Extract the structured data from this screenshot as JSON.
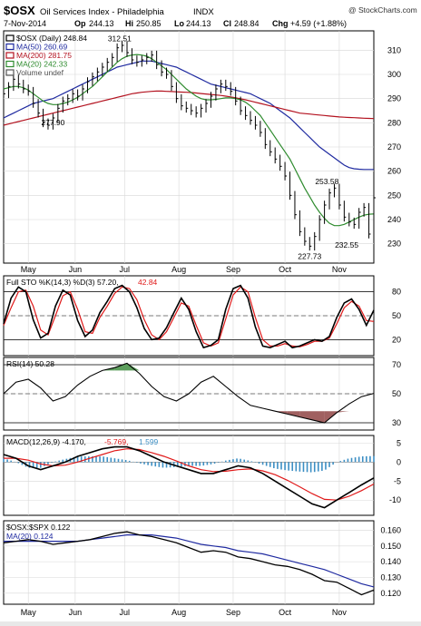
{
  "header": {
    "symbol": "$OSX",
    "name": "Oil Services Index - Philadelphia",
    "exchange": "INDX",
    "copyright": "@ StockCharts.com",
    "date": "7-Nov-2014",
    "op_label": "Op",
    "op": "244.13",
    "hi_label": "Hi",
    "hi": "250.85",
    "lo_label": "Lo",
    "lo": "244.13",
    "cl_label": "Cl",
    "cl": "248.84",
    "chg_label": "Chg",
    "chg": "+4.59 (+1.88%)"
  },
  "x_axis": {
    "months": [
      "May",
      "Jun",
      "Jul",
      "Aug",
      "Sep",
      "Oct",
      "Nov"
    ]
  },
  "colors": {
    "price": "#000000",
    "ma50": "#1f2aa0",
    "ma200": "#b3121f",
    "ma20": "#2e8b2e",
    "pct_k": "#000000",
    "pct_d": "#e01a1a",
    "rsi": "#000000",
    "macd": "#000000",
    "signal": "#e01a1a",
    "hist": "#3d8fc4",
    "ratio": "#000000",
    "ratio_ma": "#1f2aa0",
    "rsi_fill_high": "#5c9e5c",
    "rsi_fill_low": "#a06060"
  },
  "chart_data": [
    {
      "type": "line",
      "panel": "price",
      "legend": [
        {
          "label": "$OSX (Daily) 248.84",
          "color": "#000000"
        },
        {
          "label": "MA(50) 260.69",
          "color": "#1f2aa0"
        },
        {
          "label": "MA(200) 281.75",
          "color": "#b3121f"
        },
        {
          "label": "MA(20) 242.33",
          "color": "#2e8b2e"
        },
        {
          "label": "Volume undef",
          "color": "#555555"
        }
      ],
      "ylim": [
        222,
        318
      ],
      "yticks": [
        230,
        240,
        250,
        260,
        270,
        280,
        290,
        300,
        310
      ],
      "annotations": [
        {
          "text": "312.51",
          "x": 47,
          "y": 312.51
        },
        {
          "text": "277.90",
          "x": 20,
          "y": 277.9
        },
        {
          "text": "253.58",
          "x": 131,
          "y": 253.58
        },
        {
          "text": "227.73",
          "x": 124,
          "y": 227.73
        },
        {
          "text": "232.55",
          "x": 139,
          "y": 232.55
        }
      ],
      "x": [
        0,
        2,
        4,
        6,
        8,
        10,
        12,
        14,
        16,
        18,
        20,
        22,
        24,
        26,
        28,
        30,
        32,
        34,
        36,
        38,
        40,
        42,
        44,
        46,
        48,
        50,
        52,
        54,
        56,
        58,
        60,
        62,
        64,
        66,
        68,
        70,
        72,
        74,
        76,
        78,
        80,
        82,
        84,
        86,
        88,
        90,
        92,
        94,
        96,
        98,
        100,
        102,
        104,
        106,
        108,
        110,
        112,
        114,
        116,
        118,
        120,
        122,
        124,
        126,
        128,
        130,
        132,
        134,
        136,
        138,
        140,
        142,
        144,
        146,
        148,
        150
      ],
      "series": [
        {
          "name": "$OSX (Daily)",
          "values": [
            292,
            295,
            298,
            296,
            294,
            293,
            288,
            284,
            280,
            279,
            282,
            286,
            289,
            290,
            292,
            291,
            294,
            297,
            299,
            301,
            303,
            305,
            307,
            311,
            312,
            309,
            306,
            305,
            306,
            307,
            308,
            304,
            301,
            300,
            295,
            290,
            287,
            286,
            285,
            284,
            286,
            288,
            291,
            294,
            296,
            295,
            293,
            289,
            285,
            283,
            281,
            279,
            276,
            271,
            268,
            265,
            262,
            258,
            250,
            242,
            235,
            231,
            229,
            233,
            240,
            246,
            251,
            253,
            246,
            241,
            239,
            238,
            243,
            245,
            234,
            249
          ]
        },
        {
          "name": "MA(50)",
          "values": [
            282,
            283,
            284,
            285,
            286,
            287,
            288,
            288.5,
            289,
            289.5,
            290,
            291,
            292,
            293,
            294,
            295,
            296,
            297,
            298,
            299,
            300,
            301,
            302,
            303,
            303.5,
            304,
            304.5,
            305,
            305.5,
            305.5,
            305.5,
            305,
            304.5,
            304,
            303.5,
            303,
            302,
            301,
            300,
            299,
            298,
            297,
            296,
            295.5,
            295,
            294.5,
            294,
            293.5,
            293,
            292.5,
            292,
            291,
            290,
            289,
            288,
            286.5,
            285,
            283.5,
            282,
            280,
            278,
            276,
            274,
            272,
            270,
            268.5,
            267,
            265.5,
            264,
            262.5,
            261.5,
            261,
            260.8,
            260.7,
            260.7,
            260.69
          ]
        },
        {
          "name": "MA(200)",
          "values": [
            279,
            279.5,
            280,
            280.5,
            281,
            281.5,
            282,
            282.5,
            283,
            283.5,
            284,
            284.5,
            285,
            285.5,
            286,
            286.5,
            287,
            287.5,
            288,
            288.5,
            289,
            289.5,
            290,
            290.5,
            291,
            291.5,
            292,
            292.3,
            292.6,
            292.8,
            293,
            293.1,
            293.1,
            293,
            292.9,
            292.8,
            292.7,
            292.6,
            292.5,
            292.3,
            292.1,
            291.9,
            291.7,
            291.5,
            291.3,
            291,
            290.7,
            290.3,
            289.9,
            289.5,
            289,
            288.5,
            288,
            287.5,
            287,
            286.5,
            286,
            285.5,
            285,
            284.5,
            284,
            283.8,
            283.6,
            283.4,
            283.2,
            283,
            282.8,
            282.6,
            282.4,
            282.3,
            282.2,
            282.1,
            282,
            281.9,
            281.8,
            281.75
          ]
        },
        {
          "name": "MA(20)",
          "values": [
            294,
            294.5,
            295,
            295,
            294.5,
            293.5,
            292,
            290.5,
            289,
            288,
            287.5,
            287.5,
            288,
            288.5,
            289.5,
            290.5,
            292,
            293.5,
            295,
            297,
            299,
            301,
            303,
            305,
            306.5,
            307.5,
            308,
            308.2,
            308,
            307.5,
            306.5,
            305,
            303.5,
            302,
            300,
            298,
            296,
            294,
            292.5,
            291,
            290,
            289.5,
            289.5,
            289.7,
            290,
            290.3,
            290.3,
            290,
            289.5,
            288.5,
            287,
            285,
            283,
            280,
            277,
            274,
            271,
            268,
            265,
            261,
            257,
            253,
            249.5,
            246,
            243,
            240.5,
            238.5,
            237.5,
            237.5,
            238,
            239,
            240,
            241,
            241.8,
            242.2,
            242.33
          ]
        }
      ]
    },
    {
      "type": "line",
      "panel": "stochastic",
      "legend": [
        {
          "label": "Full STO %K(14,3) %D(3) 57.20,",
          "color": "#000000"
        },
        {
          "label": "42.84",
          "color": "#e01a1a"
        }
      ],
      "ylim": [
        0,
        100
      ],
      "yticks": [
        20,
        50,
        80
      ],
      "x": [
        0,
        3,
        6,
        9,
        12,
        15,
        18,
        21,
        24,
        27,
        30,
        33,
        36,
        39,
        42,
        45,
        48,
        51,
        54,
        57,
        60,
        63,
        66,
        69,
        72,
        75,
        78,
        81,
        84,
        87,
        90,
        93,
        96,
        99,
        102,
        105,
        108,
        111,
        114,
        117,
        120,
        123,
        126,
        129,
        132,
        135,
        138,
        141,
        144,
        147,
        150
      ],
      "series": [
        {
          "name": "%K",
          "values": [
            40,
            72,
            86,
            80,
            45,
            22,
            28,
            62,
            82,
            76,
            44,
            24,
            32,
            54,
            68,
            84,
            88,
            80,
            60,
            34,
            20,
            22,
            35,
            54,
            72,
            58,
            30,
            10,
            13,
            20,
            58,
            84,
            88,
            72,
            36,
            12,
            10,
            14,
            18,
            10,
            12,
            16,
            20,
            18,
            24,
            48,
            66,
            71,
            58,
            38,
            57
          ]
        },
        {
          "name": "%D",
          "values": [
            38,
            60,
            80,
            82,
            62,
            32,
            26,
            50,
            75,
            80,
            58,
            30,
            28,
            48,
            62,
            78,
            86,
            84,
            70,
            45,
            26,
            20,
            30,
            48,
            66,
            62,
            38,
            16,
            12,
            16,
            46,
            76,
            86,
            80,
            48,
            20,
            12,
            12,
            15,
            12,
            11,
            14,
            18,
            18,
            22,
            40,
            60,
            68,
            62,
            44,
            42.84
          ]
        }
      ]
    },
    {
      "type": "line",
      "panel": "rsi",
      "legend": [
        {
          "label": "RSI(14) 50.28",
          "color": "#000000"
        }
      ],
      "ylim": [
        25,
        75
      ],
      "yticks": [
        30,
        50,
        70
      ],
      "x": [
        0,
        5,
        10,
        15,
        20,
        25,
        30,
        35,
        40,
        45,
        50,
        55,
        60,
        65,
        70,
        75,
        80,
        85,
        90,
        95,
        100,
        105,
        110,
        115,
        120,
        125,
        130,
        135,
        140,
        145,
        150
      ],
      "series": [
        {
          "name": "RSI(14)",
          "values": [
            50,
            58,
            60,
            54,
            45,
            48,
            56,
            62,
            66,
            68,
            71,
            64,
            55,
            48,
            45,
            50,
            58,
            62,
            55,
            48,
            42,
            40,
            38,
            36,
            34,
            32,
            30,
            37,
            43,
            48,
            50.28
          ]
        }
      ]
    },
    {
      "type": "line",
      "panel": "macd",
      "legend": [
        {
          "label": "MACD(12,26,9) -4.170,",
          "color": "#000000"
        },
        {
          "label": "-5.769,",
          "color": "#e01a1a"
        },
        {
          "label": "1.599",
          "color": "#3d8fc4"
        }
      ],
      "ylim": [
        -14,
        7
      ],
      "yticks": [
        -10,
        -5,
        0,
        5
      ],
      "x": [
        0,
        5,
        10,
        15,
        20,
        25,
        30,
        35,
        40,
        45,
        50,
        55,
        60,
        65,
        70,
        75,
        80,
        85,
        90,
        95,
        100,
        105,
        110,
        115,
        120,
        125,
        130,
        135,
        140,
        145,
        150
      ],
      "series": [
        {
          "name": "MACD",
          "values": [
            2,
            1,
            -1,
            -2,
            -1,
            0,
            1.5,
            2.5,
            3.5,
            4,
            4,
            3,
            1.5,
            0,
            -1,
            -2,
            -3,
            -3,
            -2,
            -1,
            -1.5,
            -3,
            -5,
            -7,
            -9,
            -11,
            -12,
            -10,
            -8,
            -6,
            -4.17
          ]
        },
        {
          "name": "Signal",
          "values": [
            1,
            1,
            0.5,
            -0.5,
            -1,
            -0.8,
            0,
            1,
            2,
            3,
            3.5,
            3.3,
            2.5,
            1.5,
            0.3,
            -1,
            -2,
            -2.5,
            -2.4,
            -2,
            -1.8,
            -2.3,
            -3.3,
            -4.8,
            -6.5,
            -8.3,
            -9.8,
            -10,
            -9,
            -7.5,
            -5.769
          ]
        },
        {
          "name": "Histogram",
          "values": [
            1,
            0,
            -1.5,
            -1.5,
            0,
            0.8,
            1.5,
            1.5,
            1.5,
            1,
            0.5,
            -0.3,
            -1,
            -1.5,
            -1.3,
            -1,
            -1,
            -0.5,
            0.4,
            1,
            0.3,
            -0.7,
            -1.7,
            -2.2,
            -2.5,
            -2.7,
            -2.2,
            0,
            1,
            1.5,
            1.599
          ]
        }
      ]
    },
    {
      "type": "line",
      "panel": "ratio",
      "legend": [
        {
          "label": "$OSX:$SPX 0.122",
          "color": "#000000"
        },
        {
          "label": "MA(20) 0.124",
          "color": "#1f2aa0"
        }
      ],
      "ylim": [
        0.113,
        0.166
      ],
      "yticks": [
        0.12,
        0.13,
        0.14,
        0.15,
        0.16
      ],
      "ytick_labels": [
        "0.120",
        "0.130",
        "0.140",
        "0.150",
        "0.160"
      ],
      "x": [
        0,
        5,
        10,
        15,
        20,
        25,
        30,
        35,
        40,
        45,
        50,
        55,
        60,
        65,
        70,
        75,
        80,
        85,
        90,
        95,
        100,
        105,
        110,
        115,
        120,
        125,
        130,
        135,
        140,
        145,
        150
      ],
      "series": [
        {
          "name": "$OSX:$SPX",
          "values": [
            0.152,
            0.153,
            0.154,
            0.153,
            0.151,
            0.152,
            0.153,
            0.154,
            0.156,
            0.158,
            0.159,
            0.157,
            0.156,
            0.154,
            0.152,
            0.149,
            0.146,
            0.147,
            0.146,
            0.143,
            0.142,
            0.14,
            0.138,
            0.137,
            0.135,
            0.132,
            0.128,
            0.127,
            0.123,
            0.119,
            0.122
          ]
        },
        {
          "name": "MA(20)",
          "values": [
            0.153,
            0.153,
            0.153,
            0.153,
            0.153,
            0.153,
            0.153,
            0.154,
            0.155,
            0.156,
            0.157,
            0.157,
            0.157,
            0.156,
            0.155,
            0.153,
            0.151,
            0.15,
            0.149,
            0.147,
            0.146,
            0.145,
            0.143,
            0.141,
            0.139,
            0.137,
            0.135,
            0.132,
            0.129,
            0.126,
            0.124
          ]
        }
      ]
    }
  ]
}
